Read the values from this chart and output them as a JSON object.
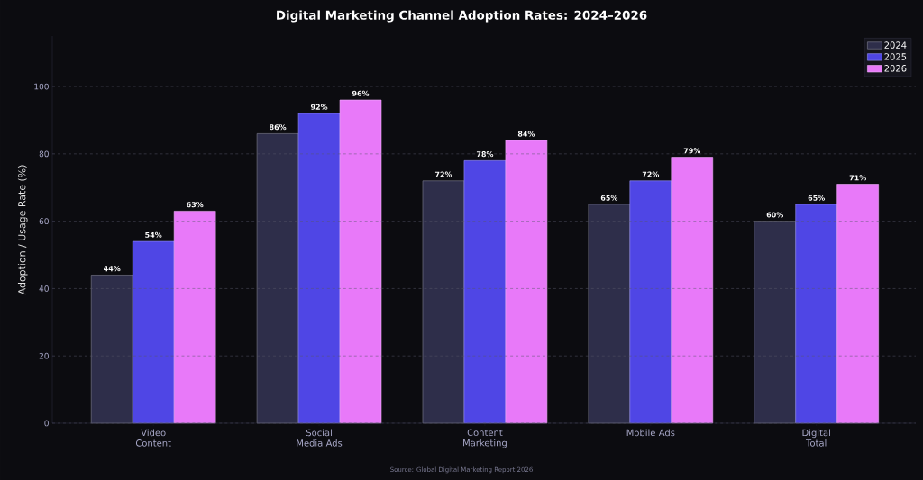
{
  "chart_data": {
    "type": "bar",
    "title": "Digital Marketing Channel Adoption Rates: 2024–2026",
    "ylabel": "Adoption / Usage Rate (%)",
    "categories": [
      "Video Content",
      "Social Media Ads",
      "Content Marketing",
      "Mobile Ads",
      "Digital Total"
    ],
    "series": [
      {
        "name": "2024",
        "color": "#2e2e4a",
        "values": [
          44,
          86,
          72,
          65,
          60
        ],
        "value_labels": [
          "44%",
          "86%",
          "72%",
          "65%",
          "60%"
        ]
      },
      {
        "name": "2025",
        "color": "#4f46e5",
        "values": [
          54,
          92,
          78,
          72,
          65
        ],
        "value_labels": [
          "54%",
          "92%",
          "78%",
          "72%",
          "65%"
        ]
      },
      {
        "name": "2026",
        "color": "#e879f9",
        "values": [
          63,
          96,
          84,
          79,
          71
        ],
        "value_labels": [
          "63%",
          "96%",
          "84%",
          "79%",
          "71%"
        ]
      }
    ],
    "ylim": [
      0,
      115
    ],
    "yticks": [
      0,
      20,
      40,
      60,
      80,
      100
    ],
    "grid": "y",
    "legend": "top right",
    "annotations": [
      "Source: Global Digital Marketing Report 2026"
    ]
  }
}
